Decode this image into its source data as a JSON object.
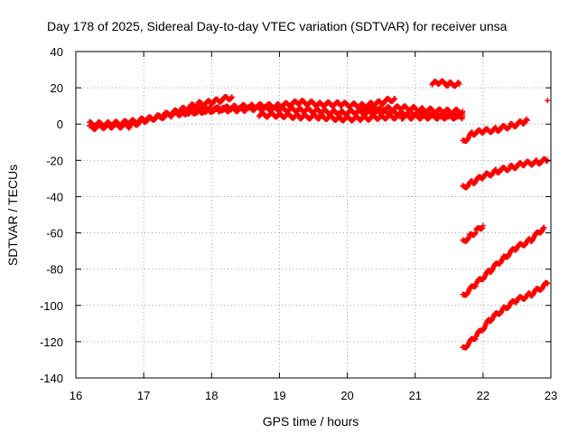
{
  "chart_data": {
    "type": "scatter",
    "title": "Day 178 of 2025, Sidereal Day-to-day VTEC variation (SDTVAR) for receiver unsa",
    "xlabel": "GPS time / hours",
    "ylabel": "SDTVAR / TECUs",
    "xlim": [
      16,
      23
    ],
    "ylim": [
      -140,
      40
    ],
    "xticks": [
      16,
      17,
      18,
      19,
      20,
      21,
      22,
      23
    ],
    "yticks": [
      -140,
      -120,
      -100,
      -80,
      -60,
      -40,
      -20,
      0,
      20,
      40
    ],
    "grid": true,
    "marker": "+",
    "color": "#ff0000",
    "series": [
      {
        "name": "track-1",
        "x": [
          16.2,
          16.5,
          16.8,
          17.0,
          17.2,
          17.5,
          17.8,
          18.0,
          18.3
        ],
        "y": [
          -2,
          -1,
          -1,
          2,
          4,
          7,
          11,
          12,
          15
        ]
      },
      {
        "name": "track-2",
        "x": [
          16.2,
          16.5,
          16.8,
          17.1,
          17.4,
          17.7,
          18.0,
          18.3,
          18.6,
          19.0,
          19.3,
          19.6,
          19.9,
          20.2,
          20.4,
          20.7
        ],
        "y": [
          0,
          0,
          1,
          3,
          5,
          7,
          8,
          9,
          10,
          10,
          12,
          11,
          11,
          10,
          11,
          14
        ]
      },
      {
        "name": "track-3",
        "x": [
          17.5,
          17.8,
          18.1,
          18.4,
          18.7,
          19.0,
          19.3,
          19.6,
          19.9,
          20.2,
          20.5,
          20.8,
          21.1,
          21.4,
          21.7
        ],
        "y": [
          6,
          7,
          8,
          8,
          9,
          8,
          8,
          7,
          6,
          7,
          7,
          6,
          6,
          5,
          5
        ]
      },
      {
        "name": "track-4",
        "x": [
          18.7,
          19.0,
          19.3,
          19.6,
          19.9,
          20.2,
          20.5,
          20.8,
          21.1,
          21.4,
          21.7
        ],
        "y": [
          5,
          5,
          4,
          4,
          3,
          3,
          4,
          4,
          4,
          4,
          4
        ]
      },
      {
        "name": "track-5",
        "x": [
          20.2,
          20.5,
          20.8,
          21.1,
          21.4,
          21.7
        ],
        "y": [
          7,
          8,
          9,
          8,
          7,
          7
        ]
      },
      {
        "name": "track-6",
        "x": [
          21.25,
          21.35,
          21.5,
          21.65
        ],
        "y": [
          22,
          23,
          22,
          22
        ]
      },
      {
        "name": "track-7",
        "x": [
          21.7,
          21.85,
          22.0,
          22.2,
          22.4,
          22.6,
          22.65
        ],
        "y": [
          -10,
          -5,
          -4,
          -3,
          -1,
          1,
          2
        ]
      },
      {
        "name": "track-8",
        "x": [
          21.7,
          21.85,
          22.0,
          22.2,
          22.4,
          22.6,
          22.8,
          22.95
        ],
        "y": [
          -35,
          -32,
          -29,
          -26,
          -24,
          -22,
          -21,
          -20
        ]
      },
      {
        "name": "track-9",
        "x": [
          21.7,
          21.8,
          21.9,
          22.0
        ],
        "y": [
          -65,
          -62,
          -59,
          -56
        ]
      },
      {
        "name": "track-10",
        "x": [
          21.7,
          21.9,
          22.1,
          22.3,
          22.5,
          22.7,
          22.9
        ],
        "y": [
          -95,
          -88,
          -81,
          -74,
          -68,
          -64,
          -57
        ]
      },
      {
        "name": "track-11",
        "x": [
          21.7,
          21.9,
          22.1,
          22.3,
          22.5,
          22.7,
          22.95
        ],
        "y": [
          -124,
          -117,
          -108,
          -102,
          -97,
          -94,
          -88
        ]
      },
      {
        "name": "isolated-point",
        "x": [
          22.95
        ],
        "y": [
          13
        ]
      }
    ]
  }
}
